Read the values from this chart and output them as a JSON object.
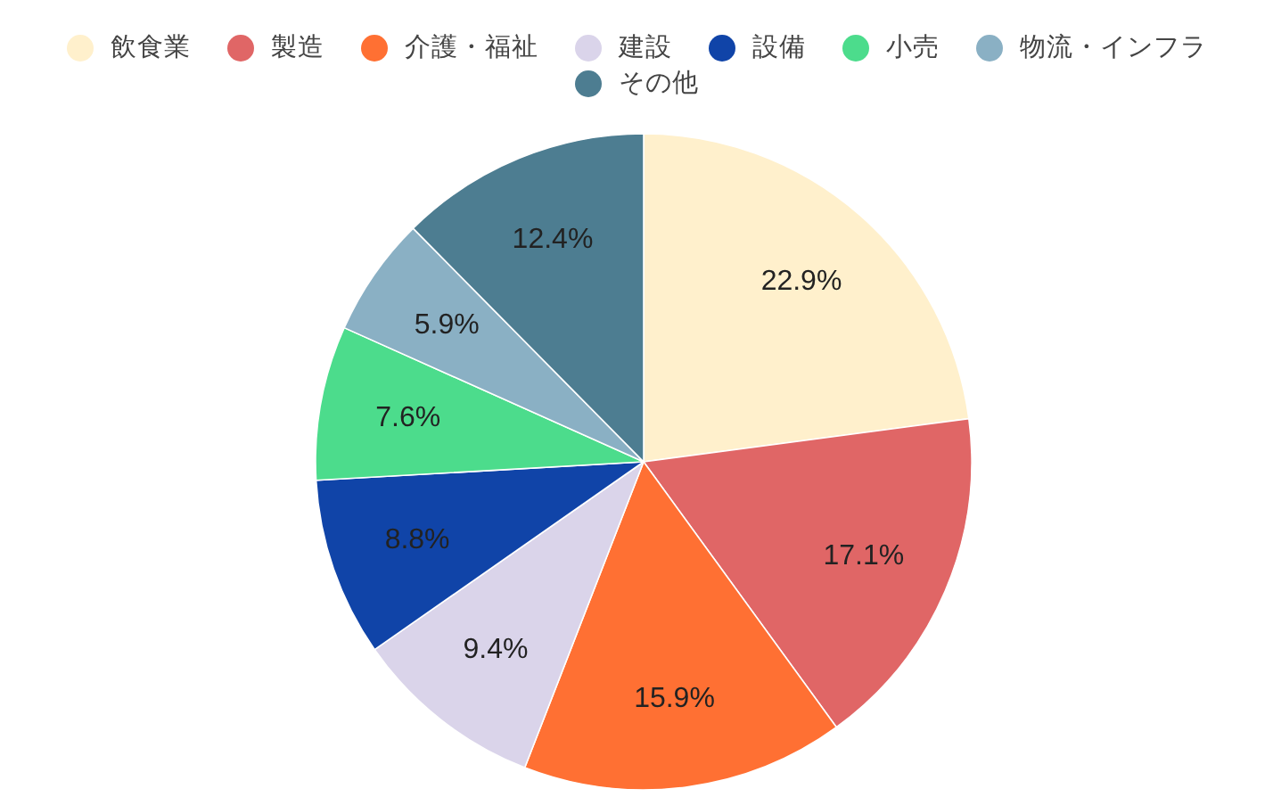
{
  "chart_data": {
    "type": "pie",
    "categories": [
      "飲食業",
      "製造",
      "介護・福祉",
      "建設",
      "設備",
      "小売",
      "物流・インフラ",
      "その他"
    ],
    "values": [
      22.9,
      17.1,
      15.9,
      9.4,
      8.8,
      7.6,
      5.9,
      12.4
    ],
    "colors": [
      "#fff0cc",
      "#e06666",
      "#ff7033",
      "#dad4ea",
      "#1044a8",
      "#4cdc8c",
      "#8ab0c4",
      "#4d7d91"
    ],
    "value_labels": [
      "22.9%",
      "17.1%",
      "15.9%",
      "9.4%",
      "8.8%",
      "7.6%",
      "5.9%",
      "12.4%"
    ],
    "legend": "top"
  }
}
